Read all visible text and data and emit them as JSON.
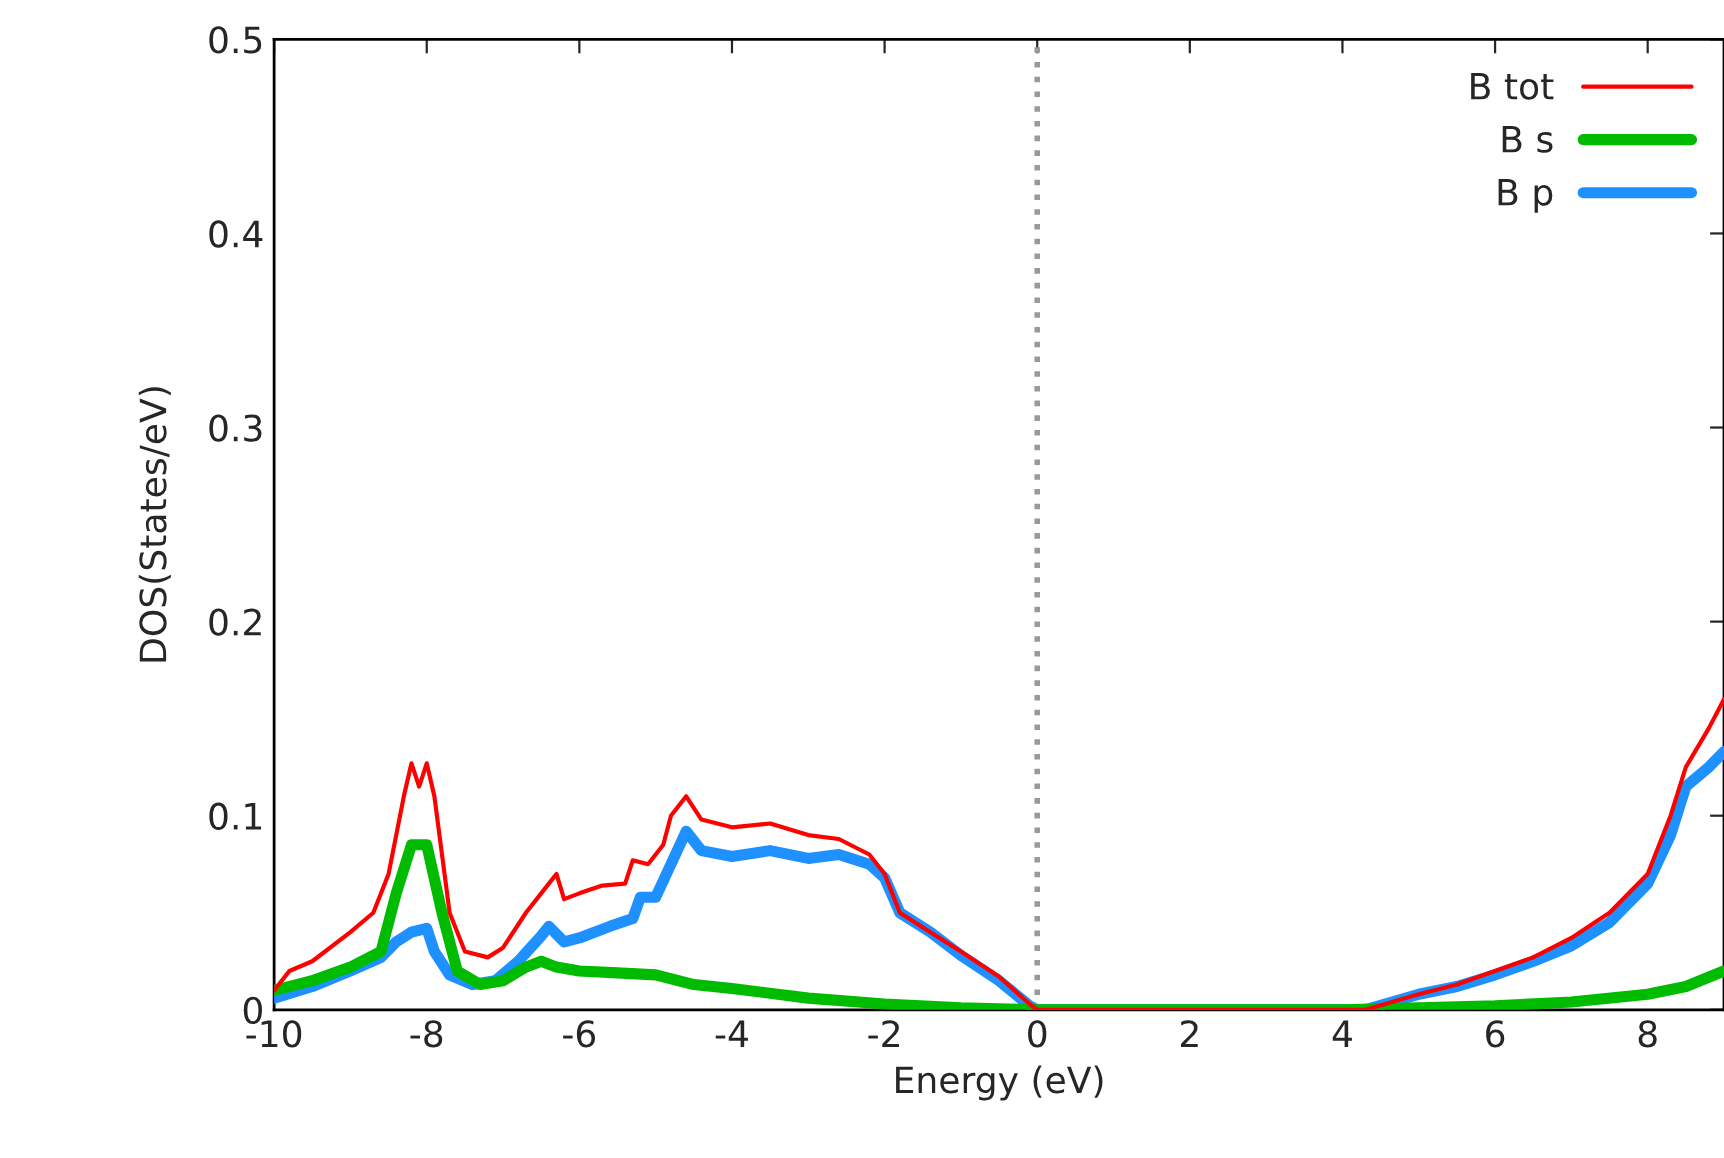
{
  "chart_data": {
    "type": "line",
    "xlabel": "Energy (eV)",
    "ylabel": "DOS(States/eV)",
    "xlim": [
      -10,
      9
    ],
    "xticks": [
      -10,
      -8,
      -6,
      -4,
      -2,
      0,
      2,
      4,
      6,
      8
    ],
    "ylim": [
      0,
      0.5
    ],
    "yticks": [
      0,
      0.1,
      0.2,
      0.3,
      0.4,
      0.5
    ],
    "grid": false,
    "legend": "top right",
    "marker": "none",
    "line_style": "solid",
    "ref_lines": [
      {
        "axis": "x",
        "value": 0,
        "color": "#999999",
        "line_style": "dotted"
      }
    ],
    "series": [
      {
        "name": "B tot",
        "color": "#ff0000",
        "x": [
          -10,
          -9.8,
          -9.5,
          -9,
          -8.7,
          -8.5,
          -8.3,
          -8.2,
          -8.1,
          -8.0,
          -7.9,
          -7.7,
          -7.5,
          -7.2,
          -7,
          -6.7,
          -6.4,
          -6.3,
          -6.2,
          -6,
          -5.7,
          -5.4,
          -5.3,
          -5.1,
          -4.9,
          -4.8,
          -4.6,
          -4.4,
          -4,
          -3.5,
          -3,
          -2.6,
          -2.2,
          -2,
          -1.8,
          -1.4,
          -1,
          -0.5,
          -0.1,
          0,
          4.3,
          5,
          5.5,
          6,
          6.5,
          7,
          7.5,
          8,
          8.3,
          8.5,
          8.8,
          9
        ],
        "values": [
          0.01,
          0.02,
          0.025,
          0.04,
          0.05,
          0.07,
          0.11,
          0.127,
          0.115,
          0.127,
          0.11,
          0.05,
          0.03,
          0.027,
          0.032,
          0.05,
          0.065,
          0.07,
          0.057,
          0.06,
          0.064,
          0.065,
          0.077,
          0.075,
          0.085,
          0.1,
          0.11,
          0.098,
          0.094,
          0.096,
          0.09,
          0.088,
          0.08,
          0.07,
          0.05,
          0.04,
          0.03,
          0.017,
          0.003,
          0,
          0,
          0.008,
          0.013,
          0.02,
          0.027,
          0.037,
          0.05,
          0.07,
          0.1,
          0.125,
          0.145,
          0.16
        ]
      },
      {
        "name": "B s",
        "color": "#00bb00",
        "x": [
          -10,
          -9.5,
          -9,
          -8.6,
          -8.4,
          -8.2,
          -8.0,
          -7.8,
          -7.6,
          -7.3,
          -7,
          -6.7,
          -6.5,
          -6.3,
          -6,
          -5.5,
          -5,
          -4.5,
          -4,
          -3,
          -2,
          -1,
          0,
          4,
          5,
          6,
          7,
          8,
          8.5,
          9
        ],
        "values": [
          0.01,
          0.015,
          0.022,
          0.03,
          0.06,
          0.085,
          0.085,
          0.05,
          0.02,
          0.013,
          0.015,
          0.022,
          0.025,
          0.022,
          0.02,
          0.019,
          0.018,
          0.013,
          0.011,
          0.006,
          0.003,
          0.001,
          0,
          0,
          0.001,
          0.002,
          0.004,
          0.008,
          0.012,
          0.02
        ]
      },
      {
        "name": "B p",
        "color": "#1e90ff",
        "x": [
          -10,
          -9.5,
          -9,
          -8.6,
          -8.4,
          -8.2,
          -8.0,
          -7.9,
          -7.7,
          -7.4,
          -7.1,
          -6.8,
          -6.5,
          -6.4,
          -6.2,
          -6,
          -5.6,
          -5.3,
          -5.2,
          -5,
          -4.8,
          -4.6,
          -4.4,
          -4,
          -3.5,
          -3,
          -2.6,
          -2.2,
          -2,
          -1.8,
          -1.4,
          -1,
          -0.5,
          -0.1,
          0,
          4.3,
          5,
          5.5,
          6,
          6.5,
          7,
          7.5,
          8,
          8.3,
          8.5,
          8.8,
          9
        ],
        "values": [
          0.006,
          0.012,
          0.02,
          0.027,
          0.035,
          0.04,
          0.042,
          0.03,
          0.018,
          0.013,
          0.015,
          0.025,
          0.038,
          0.043,
          0.035,
          0.037,
          0.043,
          0.047,
          0.058,
          0.058,
          0.075,
          0.092,
          0.082,
          0.079,
          0.082,
          0.078,
          0.08,
          0.075,
          0.068,
          0.05,
          0.04,
          0.028,
          0.015,
          0.002,
          0,
          0,
          0.008,
          0.012,
          0.018,
          0.025,
          0.033,
          0.045,
          0.065,
          0.09,
          0.115,
          0.125,
          0.133
        ]
      }
    ]
  }
}
